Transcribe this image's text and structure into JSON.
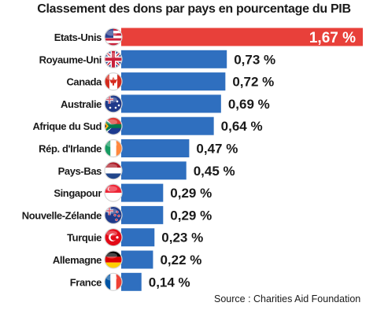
{
  "chart_data": {
    "type": "bar",
    "orientation": "horizontal",
    "title": "Classement des dons par pays en pourcentage du PIB",
    "categories": [
      "Etats-Unis",
      "Royaume-Uni",
      "Canada",
      "Australie",
      "Afrique du Sud",
      "Rép. d'Irlande",
      "Pays-Bas",
      "Singapour",
      "Nouvelle-Zélande",
      "Turquie",
      "Allemagne",
      "France"
    ],
    "values": [
      1.67,
      0.73,
      0.72,
      0.69,
      0.64,
      0.47,
      0.45,
      0.29,
      0.29,
      0.23,
      0.22,
      0.14
    ],
    "value_labels": [
      "1,67 %",
      "0,73 %",
      "0,72 %",
      "0,69 %",
      "0,64 %",
      "0,47 %",
      "0,45 %",
      "0,29 %",
      "0,29 %",
      "0,23 %",
      "0,22 %",
      "0,14 %"
    ],
    "flags": [
      "usa-flag-icon",
      "uk-flag-icon",
      "canada-flag-icon",
      "australia-flag-icon",
      "south-africa-flag-icon",
      "ireland-flag-icon",
      "netherlands-flag-icon",
      "singapore-flag-icon",
      "new-zealand-flag-icon",
      "turkey-flag-icon",
      "germany-flag-icon",
      "france-flag-icon"
    ],
    "highlight_index": 0,
    "colors": {
      "bar": "#2f6fbf",
      "highlight": "#e8403a",
      "label": "#1a1a1a"
    },
    "source": "Source : Charities Aid Foundation",
    "grid": false,
    "legend": "none"
  }
}
